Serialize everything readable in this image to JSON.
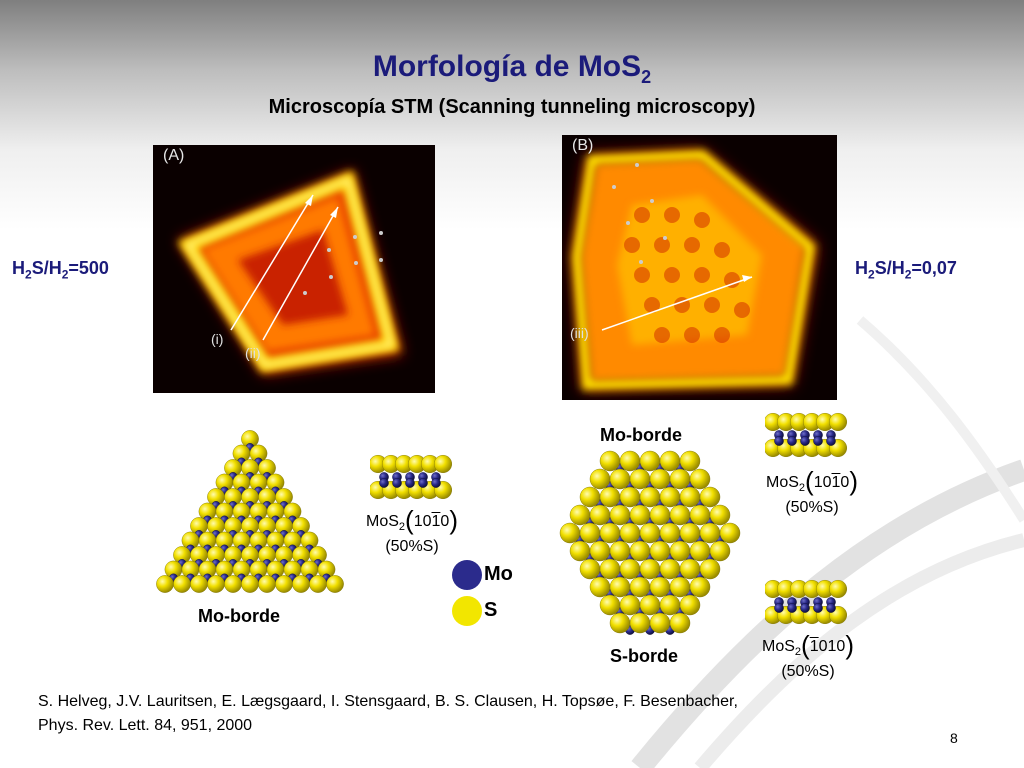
{
  "slide": {
    "title_main": "Morfología de  MoS",
    "title_sub": "2",
    "subtitle": "Microscopía STM (Scanning tunneling microscopy)",
    "page_number": "8"
  },
  "ratios": {
    "left": {
      "a": "H",
      "a_sub": "2",
      "b": "S/H",
      "b_sub": "2",
      "c": "=500"
    },
    "right": {
      "a": "H",
      "a_sub": "2",
      "b": "S/H",
      "b_sub": "2",
      "c": "=0,07"
    }
  },
  "stm_images": {
    "a_label": "(A)",
    "a_marker_i": "(i)",
    "a_marker_ii": "(ii)",
    "b_label": "(B)",
    "b_marker_iii": "(iii)"
  },
  "structures": {
    "triangle_label": "Mo-borde",
    "hexagon_top_label": "Mo-borde",
    "hexagon_bottom_label": "S-borde"
  },
  "miller": {
    "left": {
      "formula": "MoS",
      "sub": "2",
      "i1": "10",
      "bar": "1",
      "i2": "0",
      "pct": "(50%S)"
    },
    "right_top": {
      "formula": "MoS",
      "sub": "2",
      "i1": "10",
      "bar": "1",
      "i2": "0",
      "pct": "(50%S)"
    },
    "right_bottom": {
      "formula": "MoS",
      "sub": "2",
      "bar": "1",
      "i2": "010",
      "pct": "(50%S)"
    }
  },
  "legend": {
    "mo": {
      "label": "Mo",
      "color": "#2b2b8c"
    },
    "s": {
      "label": "S",
      "color": "#f2e600"
    }
  },
  "reference": {
    "line1": "S. Helveg, J.V. Lauritsen, E. Lægsgaard, I. Stensgaard, B. S. Clausen, H. Topsøe, F. Besenbacher,",
    "line2": "Phys. Rev. Lett. 84, 951, 2000"
  }
}
